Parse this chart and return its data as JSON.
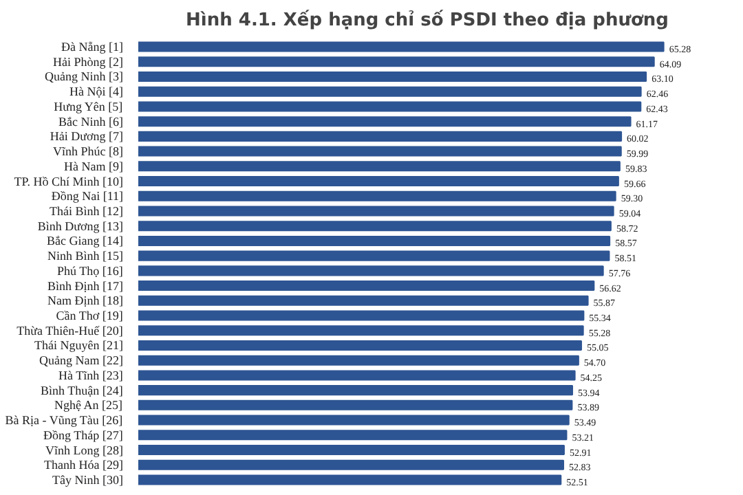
{
  "chart_data": {
    "type": "bar",
    "orientation": "horizontal",
    "title": "Hình 4.1. Xếp hạng chỉ số PSDI theo địa phương",
    "categories": [
      "Đà Nẵng [1]",
      "Hải Phòng [2]",
      "Quảng Ninh [3]",
      "Hà Nội [4]",
      "Hưng Yên [5]",
      "Bắc Ninh [6]",
      "Hải Dương [7]",
      "Vĩnh Phúc [8]",
      "Hà Nam [9]",
      "TP. Hồ Chí Minh [10]",
      "Đồng Nai [11]",
      "Thái Bình [12]",
      "Bình Dương [13]",
      "Bắc Giang [14]",
      "Ninh Bình [15]",
      "Phú Thọ [16]",
      "Bình Định [17]",
      "Nam Định [18]",
      "Cần Thơ [19]",
      "Thừa Thiên-Huế [20]",
      "Thái Nguyên [21]",
      "Quảng Nam [22]",
      "Hà Tĩnh [23]",
      "Bình Thuận [24]",
      "Nghệ An [25]",
      "Bà Rịa - Vũng Tàu [26]",
      "Đồng Tháp [27]",
      "Vĩnh Long [28]",
      "Thanh Hóa [29]",
      "Tây Ninh [30]"
    ],
    "values": [
      65.28,
      64.09,
      63.1,
      62.46,
      62.43,
      61.17,
      60.02,
      59.99,
      59.83,
      59.66,
      59.3,
      59.04,
      58.72,
      58.57,
      58.51,
      57.76,
      56.62,
      55.87,
      55.34,
      55.28,
      55.05,
      54.7,
      54.25,
      53.94,
      53.89,
      53.49,
      53.21,
      52.91,
      52.83,
      52.51
    ],
    "value_labels": [
      "65.28",
      "64.09",
      "63.10",
      "62.46",
      "62.43",
      "61.17",
      "60.02",
      "59.99",
      "59.83",
      "59.66",
      "59.30",
      "59.04",
      "58.72",
      "58.57",
      "58.51",
      "57.76",
      "56.62",
      "55.87",
      "55.34",
      "55.28",
      "55.05",
      "54.70",
      "54.25",
      "53.94",
      "53.89",
      "53.49",
      "53.21",
      "52.91",
      "52.83",
      "52.51"
    ],
    "color": "#2e5593",
    "tick_labels": "y"
  }
}
